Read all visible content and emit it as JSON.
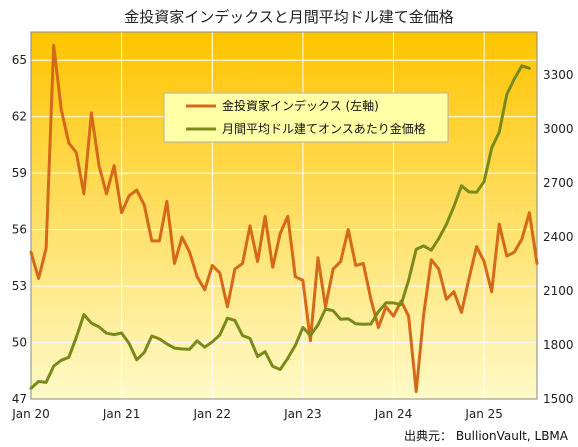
{
  "chart_data": {
    "type": "line",
    "title": "金投資家インデックスと月間平均ドル建て金価格",
    "source": "出典元： BullionVault, LBMA",
    "x_ticks": [
      "Jan 20",
      "Jan 21",
      "Jan 22",
      "Jan 23",
      "Jan 24",
      "Jan 25"
    ],
    "y_left_ticks": [
      "47",
      "50",
      "53",
      "56",
      "59",
      "62",
      "65"
    ],
    "y_right_ticks": [
      "1500",
      "1800",
      "2100",
      "2400",
      "2700",
      "3000",
      "3300"
    ],
    "y_left_range": [
      47,
      66.5
    ],
    "y_right_range": [
      1500,
      3540
    ],
    "legend_position": "top-center",
    "colors": {
      "index": "#D4691A",
      "gold": "#7A8A1A",
      "bg_top": "#FFC400",
      "bg_bottom": "#FFFAC8",
      "legend_bg": "#FFFFA6"
    },
    "series": [
      {
        "name": "金投資家インデックス (左軸)",
        "axis": "left",
        "values": [
          54.8,
          53.4,
          55.0,
          65.8,
          62.4,
          60.6,
          60.1,
          57.9,
          62.2,
          59.4,
          57.9,
          59.4,
          56.9,
          57.8,
          58.1,
          57.3,
          55.4,
          55.4,
          57.5,
          54.2,
          55.6,
          54.8,
          53.5,
          52.8,
          54.1,
          53.7,
          51.9,
          53.9,
          54.2,
          56.2,
          54.3,
          56.7,
          54.0,
          55.8,
          56.7,
          53.5,
          53.3,
          50.1,
          54.5,
          51.9,
          53.9,
          54.3,
          56.0,
          54.1,
          54.2,
          52.3,
          50.8,
          51.9,
          51.4,
          52.2,
          51.4,
          47.4,
          51.5,
          54.4,
          53.9,
          52.3,
          52.7,
          51.6,
          53.4,
          55.1,
          54.3,
          52.7,
          56.3,
          54.6,
          54.8,
          55.5,
          56.9,
          54.2
        ]
      },
      {
        "name": "月間平均ドル建てオンスあたり金価格",
        "axis": "right",
        "values": [
          1560,
          1597,
          1592,
          1683,
          1715,
          1732,
          1843,
          1969,
          1922,
          1901,
          1866,
          1858,
          1867,
          1808,
          1718,
          1759,
          1850,
          1834,
          1806,
          1783,
          1778,
          1776,
          1823,
          1788,
          1818,
          1856,
          1949,
          1937,
          1853,
          1837,
          1736,
          1763,
          1681,
          1664,
          1726,
          1798,
          1898,
          1853,
          1912,
          2000,
          1991,
          1943,
          1946,
          1918,
          1916,
          1917,
          1985,
          2035,
          2034,
          2024,
          2160,
          2332,
          2351,
          2327,
          2392,
          2471,
          2570,
          2685,
          2651,
          2649,
          2709,
          2896,
          2983,
          3193,
          3279,
          3352,
          3338
        ]
      }
    ]
  }
}
